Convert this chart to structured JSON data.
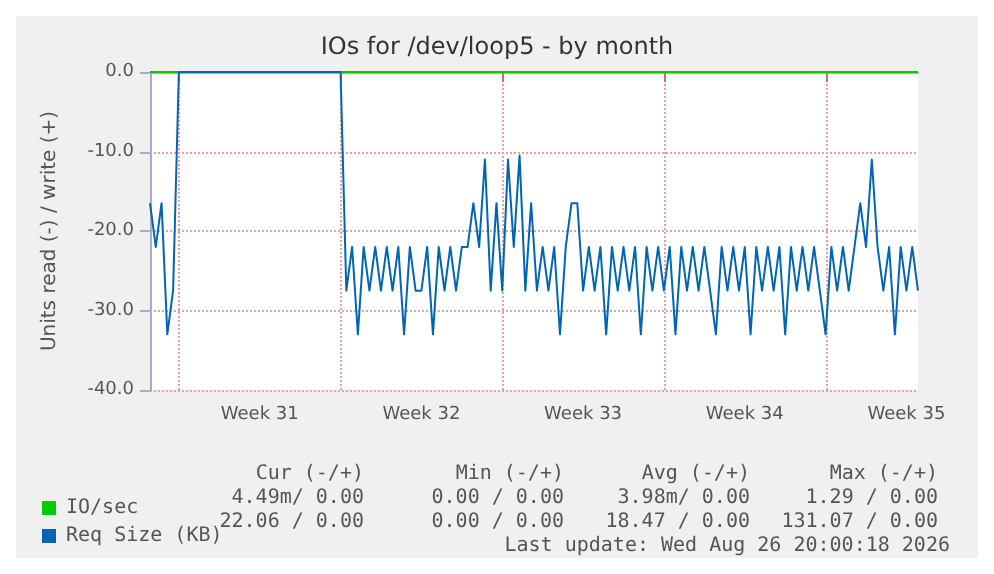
{
  "chart_data": {
    "type": "line",
    "title": "IOs for /dev/loop5 - by month",
    "ylabel": "Units read (-) / write (+)",
    "categories": [
      null,
      null,
      null,
      null,
      null,
      null,
      null,
      null,
      null,
      null,
      null,
      null,
      null,
      null,
      null,
      null,
      null,
      null,
      null,
      "Week 31",
      null,
      null,
      null,
      null,
      null,
      null,
      null,
      null,
      null,
      null,
      null,
      null,
      null,
      null,
      null,
      null,
      null,
      null,
      null,
      null,
      null,
      null,
      null,
      null,
      null,
      null,
      null,
      "Week 32",
      null,
      null,
      null,
      null,
      null,
      null,
      null,
      null,
      null,
      null,
      null,
      null,
      null,
      null,
      null,
      null,
      null,
      null,
      null,
      null,
      null,
      null,
      null,
      null,
      null,
      null,
      null,
      "Week 33",
      null,
      null,
      null,
      null,
      null,
      null,
      null,
      null,
      null,
      null,
      null,
      null,
      null,
      null,
      null,
      null,
      null,
      null,
      null,
      null,
      null,
      null,
      null,
      null,
      null,
      null,
      null,
      "Week 34",
      null,
      null,
      null,
      null,
      null,
      null,
      null,
      null,
      null,
      null,
      null,
      null,
      null,
      null,
      null,
      null,
      null,
      null,
      null,
      null,
      null,
      null,
      null,
      null,
      null,
      null,
      null,
      "Week 35",
      null,
      null
    ],
    "ylim": [
      -40,
      0
    ],
    "yticks": [
      {
        "value": -40,
        "label": "-40.0"
      },
      {
        "value": -30,
        "label": "-30.0"
      },
      {
        "value": -20,
        "label": "-20.0"
      },
      {
        "value": -10,
        "label": "-10.0"
      },
      {
        "value": 0,
        "label": "0.0"
      }
    ],
    "grid": true,
    "legend": "bottom left",
    "marker": "none",
    "line_style": "solid",
    "series": [
      {
        "name": "IO/sec",
        "color": "#00cc00",
        "values": [
          0,
          0,
          0,
          0,
          0,
          0,
          0,
          0,
          0,
          0,
          0,
          0,
          0,
          0,
          0,
          0,
          0,
          0,
          0,
          0,
          0,
          0,
          0,
          0,
          0,
          0,
          0,
          0,
          0,
          0,
          0,
          0,
          0,
          0,
          0,
          0,
          0,
          0,
          0,
          0,
          0,
          0,
          0,
          0,
          0,
          0,
          0,
          0,
          0,
          0,
          0,
          0,
          0,
          0,
          0,
          0,
          0,
          0,
          0,
          0,
          0,
          0,
          0,
          0,
          0,
          0,
          0,
          0,
          0,
          0,
          0,
          0,
          0,
          0,
          0,
          0,
          0,
          0,
          0,
          0,
          0,
          0,
          0,
          0,
          0,
          0,
          0,
          0,
          0,
          0,
          0,
          0,
          0,
          0,
          0,
          0,
          0,
          0,
          0,
          0,
          0,
          0,
          0,
          0,
          0,
          0,
          0,
          0,
          0,
          0,
          0,
          0,
          0,
          0,
          0,
          0,
          0,
          0,
          0,
          0,
          0,
          0,
          0,
          0,
          0,
          0,
          0,
          0,
          0,
          0,
          0,
          0,
          0,
          0
        ]
      },
      {
        "name": "Req Size (KB)",
        "color": "#0066b3",
        "values": [
          -16.5,
          -22,
          -16.5,
          -33,
          -27.5,
          0,
          0,
          0,
          0,
          0,
          0,
          0,
          0,
          0,
          0,
          0,
          0,
          0,
          0,
          0,
          0,
          0,
          0,
          0,
          0,
          0,
          0,
          0,
          0,
          0,
          0,
          0,
          0,
          0,
          -27.5,
          -22,
          -33,
          -22,
          -27.5,
          -22,
          -27.5,
          -22,
          -27.5,
          -22,
          -33,
          -22,
          -27.5,
          -27.5,
          -22,
          -33,
          -22,
          -27.5,
          -22,
          -27.5,
          -22,
          -22,
          -16.5,
          -22,
          -11,
          -27.5,
          -16.5,
          -27.5,
          -11,
          -22,
          -10.5,
          -27.5,
          -16.5,
          -27.5,
          -22,
          -27.5,
          -22,
          -33,
          -22,
          -16.5,
          -16.5,
          -27.5,
          -22,
          -27.5,
          -22,
          -33,
          -22,
          -27.5,
          -22,
          -27.5,
          -22,
          -33,
          -22,
          -27.5,
          -22,
          -27.5,
          -22,
          -33,
          -22,
          -27.5,
          -22,
          -27.5,
          -22,
          -27.5,
          -33,
          -22,
          -27.5,
          -22,
          -27.5,
          -22,
          -33,
          -22,
          -27.5,
          -22,
          -27.5,
          -22,
          -33,
          -22,
          -27.5,
          -22,
          -27.5,
          -22,
          -27.5,
          -33,
          -22,
          -27.5,
          -22,
          -27.5,
          -22,
          -16.5,
          -22,
          -11,
          -22,
          -27.5,
          -22,
          -33,
          -22,
          -27.5,
          -22,
          -27.5
        ]
      }
    ],
    "annotations": [
      "Cur (-/+)",
      "Min (-/+)",
      "Avg (-/+)",
      "Max (-/+)",
      "4.49m/ 0.00",
      "0.00 / 0.00",
      "3.98m/ 0.00",
      "1.29 / 0.00",
      "22.06 / 0.00",
      "0.00 / 0.00",
      "18.47 / 0.00",
      "131.07 / 0.00",
      "Last update: Wed Aug 26 20:00:18 2026"
    ]
  }
}
